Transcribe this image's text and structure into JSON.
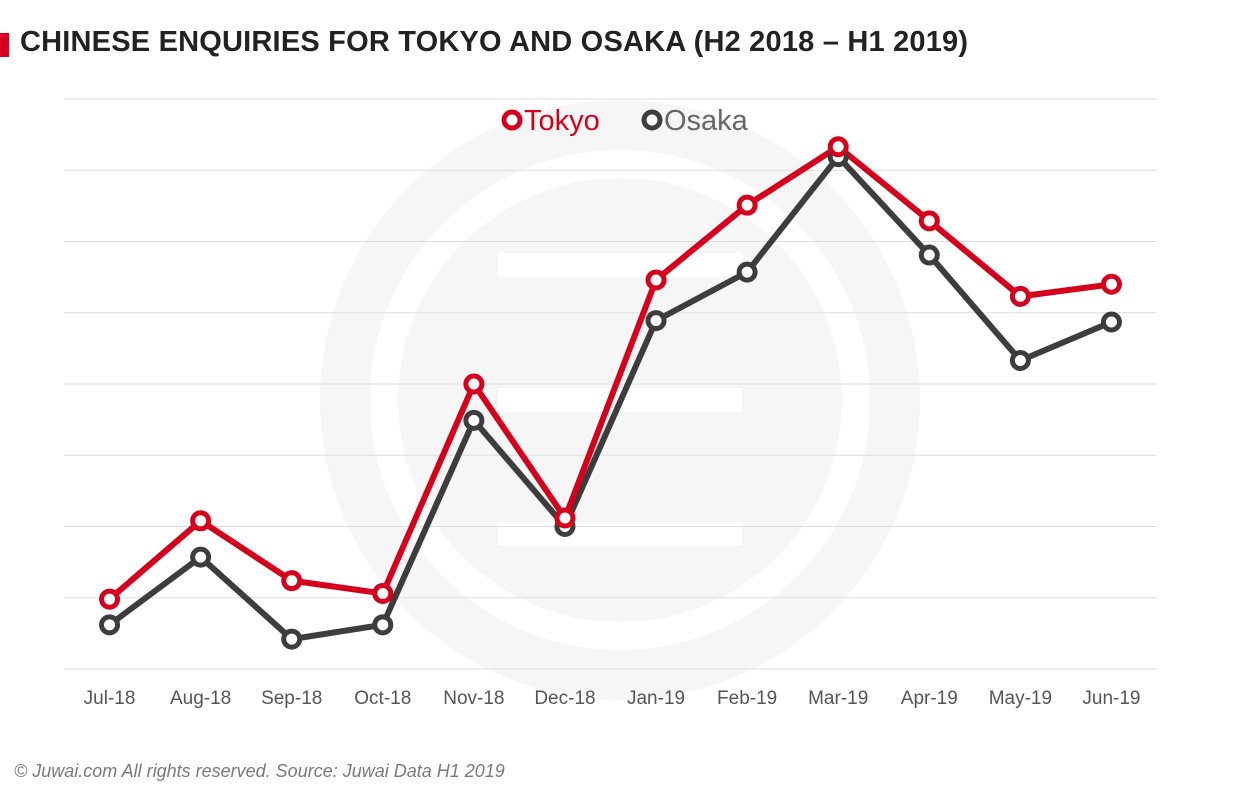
{
  "header": {
    "title": "CHINESE ENQUIRIES FOR TOKYO AND OSAKA (H2 2018 – H1 2019)"
  },
  "footer": {
    "source": "© Juwai.com All rights reserved. Source: Juwai Data H1 2019"
  },
  "colors": {
    "accent": "#d5001c",
    "tokyo": "#d5001c",
    "osaka": "#3d3d3d",
    "grid": "#dddddd"
  },
  "chart_data": {
    "type": "line",
    "title": "CHINESE ENQUIRIES FOR TOKYO AND OSAKA (H2 2018 – H1 2019)",
    "xlabel": "",
    "ylabel": "",
    "ylim": [
      0,
      8
    ],
    "y_tick_labels_shown": false,
    "grid": true,
    "legend": "top-center",
    "categories": [
      "Jul-18",
      "Aug-18",
      "Sep-18",
      "Oct-18",
      "Nov-18",
      "Dec-18",
      "Jan-19",
      "Feb-19",
      "Mar-19",
      "Apr-19",
      "May-19",
      "Jun-19"
    ],
    "series": [
      {
        "name": "Tokyo",
        "color": "#d5001c",
        "values": [
          0.98,
          2.08,
          1.24,
          1.06,
          4.0,
          2.12,
          5.46,
          6.51,
          7.33,
          6.29,
          5.23,
          5.4
        ]
      },
      {
        "name": "Osaka",
        "color": "#3d3d3d",
        "values": [
          0.62,
          1.57,
          0.42,
          0.62,
          3.49,
          2.0,
          4.89,
          5.57,
          7.19,
          5.81,
          4.33,
          4.87
        ]
      }
    ]
  }
}
